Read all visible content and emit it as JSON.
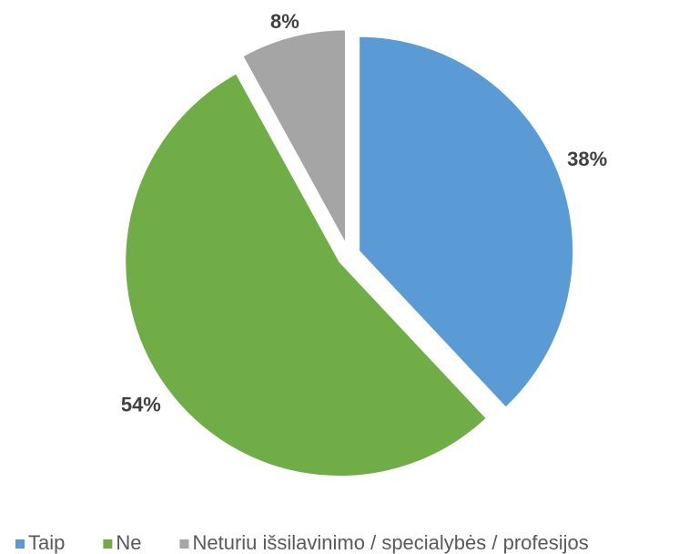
{
  "chart_data": {
    "type": "pie",
    "categories": [
      "Taip",
      "Ne",
      "Neturiu išsilavinimo / specialybės / profesijos"
    ],
    "values": [
      38,
      54,
      8
    ],
    "value_labels": [
      "38%",
      "54%",
      "8%"
    ],
    "colors": [
      "#5b9bd5",
      "#70ad47",
      "#a5a5a5"
    ],
    "legend": "bottom"
  }
}
